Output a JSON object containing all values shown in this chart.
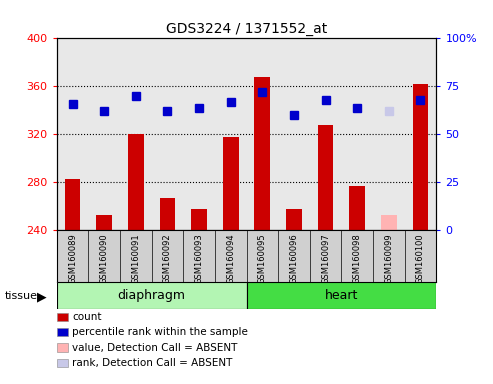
{
  "title": "GDS3224 / 1371552_at",
  "samples": [
    "GSM160089",
    "GSM160090",
    "GSM160091",
    "GSM160092",
    "GSM160093",
    "GSM160094",
    "GSM160095",
    "GSM160096",
    "GSM160097",
    "GSM160098",
    "GSM160099",
    "GSM160100"
  ],
  "bar_values": [
    283,
    253,
    320,
    267,
    258,
    318,
    368,
    258,
    328,
    277,
    253,
    362
  ],
  "bar_colors": [
    "#cc0000",
    "#cc0000",
    "#cc0000",
    "#cc0000",
    "#cc0000",
    "#cc0000",
    "#cc0000",
    "#cc0000",
    "#cc0000",
    "#cc0000",
    "#ffb3b3",
    "#cc0000"
  ],
  "rank_values": [
    66,
    62,
    70,
    62,
    64,
    67,
    72,
    60,
    68,
    64,
    62,
    68
  ],
  "rank_colors": [
    "#0000cc",
    "#0000cc",
    "#0000cc",
    "#0000cc",
    "#0000cc",
    "#0000cc",
    "#0000cc",
    "#0000cc",
    "#0000cc",
    "#0000cc",
    "#c8c8e8",
    "#0000cc"
  ],
  "ylim_left": [
    240,
    400
  ],
  "ylim_right": [
    0,
    100
  ],
  "yticks_left": [
    240,
    280,
    320,
    360,
    400
  ],
  "yticks_right_vals": [
    0,
    25,
    50,
    75,
    100
  ],
  "yticks_right_labels": [
    "0",
    "25",
    "50",
    "75",
    "100%"
  ],
  "legend_items": [
    {
      "color": "#cc0000",
      "label": "count"
    },
    {
      "color": "#0000cc",
      "label": "percentile rank within the sample"
    },
    {
      "color": "#ffb3b3",
      "label": "value, Detection Call = ABSENT"
    },
    {
      "color": "#c8c8e8",
      "label": "rank, Detection Call = ABSENT"
    }
  ],
  "bar_width": 0.5,
  "rank_marker_size": 6,
  "plot_bg_color": "#e8e8e8",
  "grid_color": "#000000",
  "diaphragm_color": "#b3f5b3",
  "heart_color": "#44dd44"
}
